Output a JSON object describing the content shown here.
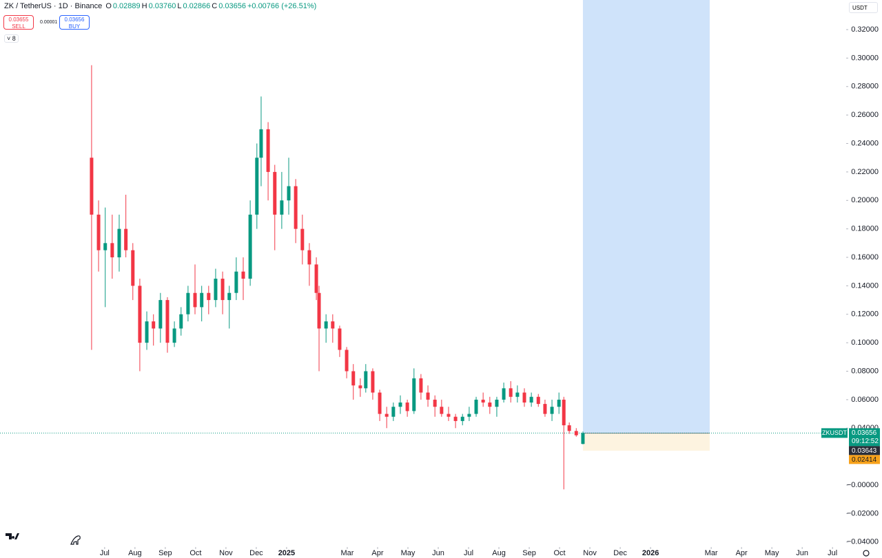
{
  "toolbar": {
    "symbol": "ZK / TetherUS · 1D · Binance",
    "ohlc": [
      "O",
      "0.02889",
      "H",
      "0.03760",
      "L",
      "0.02866",
      "C",
      "0.03656",
      "+0.00766 (+26.51%)"
    ],
    "sell_price": "0.03655",
    "sell": "SELL",
    "spread": "0.00001",
    "buy_price": "0.03656",
    "buy": "BUY",
    "indicators": "8",
    "currency": "USDT"
  },
  "chart_data": {
    "type": "candlestick",
    "up_color": "#089981",
    "down_color": "#f23645",
    "x": [
      6.57,
      6.8,
      7.02,
      7.25,
      7.48,
      7.7,
      7.93,
      8.16,
      8.39,
      8.61,
      8.84,
      9.07,
      9.3,
      9.52,
      9.75,
      9.98,
      10.2,
      10.43,
      10.66,
      10.89,
      11.11,
      11.34,
      11.57,
      11.8,
      12.02,
      12.16,
      12.39,
      12.61,
      12.84,
      13.07,
      13.3,
      13.52,
      13.75,
      13.98,
      14.07,
      14.3,
      14.52,
      14.75,
      14.98,
      15.2,
      15.43,
      15.61,
      15.84,
      16.07,
      16.3,
      16.52,
      16.75,
      16.98,
      17.2,
      17.43,
      17.66,
      17.89,
      18.11,
      18.34,
      18.57,
      18.8,
      19.02,
      19.25,
      19.48,
      19.7,
      19.93,
      20.16,
      20.39,
      20.61,
      20.84,
      21.07,
      21.3,
      21.52,
      21.75,
      21.98,
      22.14,
      22.32,
      22.55,
      22.77
    ],
    "open": [
      0.23,
      0.19,
      0.165,
      0.17,
      0.16,
      0.18,
      0.165,
      0.14,
      0.1,
      0.115,
      0.11,
      0.13,
      0.1,
      0.11,
      0.12,
      0.135,
      0.125,
      0.135,
      0.13,
      0.145,
      0.13,
      0.135,
      0.15,
      0.145,
      0.19,
      0.23,
      0.25,
      0.22,
      0.19,
      0.2,
      0.21,
      0.18,
      0.165,
      0.155,
      0.135,
      0.11,
      0.115,
      0.11,
      0.095,
      0.08,
      0.07,
      0.068,
      0.08,
      0.065,
      0.05,
      0.048,
      0.055,
      0.058,
      0.052,
      0.075,
      0.065,
      0.06,
      0.055,
      0.05,
      0.048,
      0.045,
      0.048,
      0.05,
      0.06,
      0.058,
      0.055,
      0.06,
      0.068,
      0.062,
      0.065,
      0.058,
      0.062,
      0.057,
      0.05,
      0.055,
      0.06,
      0.042,
      0.038,
      0.02889
    ],
    "high": [
      0.295,
      0.2,
      0.195,
      0.19,
      0.19,
      0.204,
      0.17,
      0.145,
      0.122,
      0.12,
      0.135,
      0.132,
      0.115,
      0.125,
      0.14,
      0.155,
      0.14,
      0.14,
      0.152,
      0.15,
      0.14,
      0.16,
      0.16,
      0.2,
      0.24,
      0.273,
      0.255,
      0.225,
      0.22,
      0.23,
      0.215,
      0.19,
      0.17,
      0.16,
      0.14,
      0.12,
      0.12,
      0.112,
      0.097,
      0.085,
      0.075,
      0.085,
      0.082,
      0.067,
      0.055,
      0.058,
      0.063,
      0.06,
      0.082,
      0.078,
      0.07,
      0.063,
      0.06,
      0.055,
      0.05,
      0.05,
      0.055,
      0.062,
      0.065,
      0.062,
      0.062,
      0.072,
      0.073,
      0.07,
      0.068,
      0.065,
      0.064,
      0.06,
      0.06,
      0.065,
      0.062,
      0.044,
      0.04,
      0.0376
    ],
    "low": [
      0.095,
      0.15,
      0.125,
      0.145,
      0.15,
      0.16,
      0.13,
      0.08,
      0.095,
      0.098,
      0.1,
      0.093,
      0.097,
      0.105,
      0.115,
      0.12,
      0.115,
      0.12,
      0.125,
      0.12,
      0.11,
      0.13,
      0.13,
      0.14,
      0.18,
      0.21,
      0.2,
      0.165,
      0.18,
      0.19,
      0.17,
      0.155,
      0.14,
      0.13,
      0.08,
      0.1,
      0.1,
      0.09,
      0.075,
      0.06,
      0.062,
      0.065,
      0.06,
      0.045,
      0.04,
      0.045,
      0.05,
      0.048,
      0.05,
      0.06,
      0.055,
      0.048,
      0.048,
      0.045,
      0.04,
      0.042,
      0.045,
      0.048,
      0.055,
      0.05,
      0.048,
      0.058,
      0.058,
      0.058,
      0.055,
      0.055,
      0.055,
      0.048,
      0.045,
      0.05,
      -0.003,
      0.036,
      0.034,
      0.02866
    ],
    "close": [
      0.19,
      0.165,
      0.17,
      0.16,
      0.18,
      0.165,
      0.14,
      0.1,
      0.115,
      0.11,
      0.13,
      0.1,
      0.11,
      0.12,
      0.135,
      0.125,
      0.135,
      0.13,
      0.145,
      0.13,
      0.135,
      0.15,
      0.145,
      0.19,
      0.23,
      0.25,
      0.22,
      0.19,
      0.2,
      0.21,
      0.18,
      0.165,
      0.155,
      0.135,
      0.11,
      0.115,
      0.11,
      0.095,
      0.08,
      0.07,
      0.068,
      0.08,
      0.065,
      0.05,
      0.048,
      0.055,
      0.058,
      0.052,
      0.075,
      0.065,
      0.06,
      0.055,
      0.05,
      0.048,
      0.045,
      0.048,
      0.05,
      0.06,
      0.058,
      0.055,
      0.06,
      0.068,
      0.062,
      0.065,
      0.058,
      0.062,
      0.057,
      0.05,
      0.055,
      0.06,
      0.042,
      0.038,
      0.035,
      0.03656
    ],
    "xlim": [
      3.55,
      31.45
    ],
    "xticks": [
      {
        "value": 7,
        "label": "Jul"
      },
      {
        "value": 8,
        "label": "Aug"
      },
      {
        "value": 9,
        "label": "Sep"
      },
      {
        "value": 10,
        "label": "Oct"
      },
      {
        "value": 11,
        "label": "Nov"
      },
      {
        "value": 12,
        "label": "Dec"
      },
      {
        "value": 13,
        "label": "2025"
      },
      {
        "value": 15,
        "label": "Mar"
      },
      {
        "value": 16,
        "label": "Apr"
      },
      {
        "value": 17,
        "label": "May"
      },
      {
        "value": 18,
        "label": "Jun"
      },
      {
        "value": 19,
        "label": "Jul"
      },
      {
        "value": 20,
        "label": "Aug"
      },
      {
        "value": 21,
        "label": "Sep"
      },
      {
        "value": 22,
        "label": "Oct"
      },
      {
        "value": 23,
        "label": "Nov"
      },
      {
        "value": 24,
        "label": "Dec"
      },
      {
        "value": 25,
        "label": "2026"
      },
      {
        "value": 27,
        "label": "Mar"
      },
      {
        "value": 28,
        "label": "Apr"
      },
      {
        "value": 29,
        "label": "May"
      },
      {
        "value": 30,
        "label": "Jun"
      },
      {
        "value": 31,
        "label": "Jul"
      }
    ],
    "ylim": [
      -0.0435,
      0.3408
    ],
    "yticks": [
      {
        "value": 0.32,
        "label": "0.32000"
      },
      {
        "value": 0.3,
        "label": "0.30000"
      },
      {
        "value": 0.28,
        "label": "0.28000"
      },
      {
        "value": 0.26,
        "label": "0.26000"
      },
      {
        "value": 0.24,
        "label": "0.24000"
      },
      {
        "value": 0.22,
        "label": "0.22000"
      },
      {
        "value": 0.2,
        "label": "0.20000"
      },
      {
        "value": 0.18,
        "label": "0.18000"
      },
      {
        "value": 0.16,
        "label": "0.16000"
      },
      {
        "value": 0.14,
        "label": "0.14000"
      },
      {
        "value": 0.12,
        "label": "0.12000"
      },
      {
        "value": 0.1,
        "label": "0.10000"
      },
      {
        "value": 0.08,
        "label": "0.08000"
      },
      {
        "value": 0.06,
        "label": "0.06000"
      },
      {
        "value": 0.04,
        "label": "0.04000"
      },
      {
        "value": 0,
        "label": "−0.00000"
      },
      {
        "value": -0.02,
        "label": "−0.02000"
      },
      {
        "value": -0.04,
        "label": "−0.04000"
      }
    ],
    "last_price": {
      "symbol": "ZKUSDT",
      "value": 0.03656,
      "countdown": "09:12:52",
      "color": "#089981"
    },
    "position": {
      "entry": 0.03643,
      "stop": 0.02414,
      "x_start": 22.77,
      "x_end": 26.95,
      "target_color": "#cfe3fa",
      "stop_color": "#fdf3e0",
      "stop_label_color": "#f7a21b"
    }
  }
}
